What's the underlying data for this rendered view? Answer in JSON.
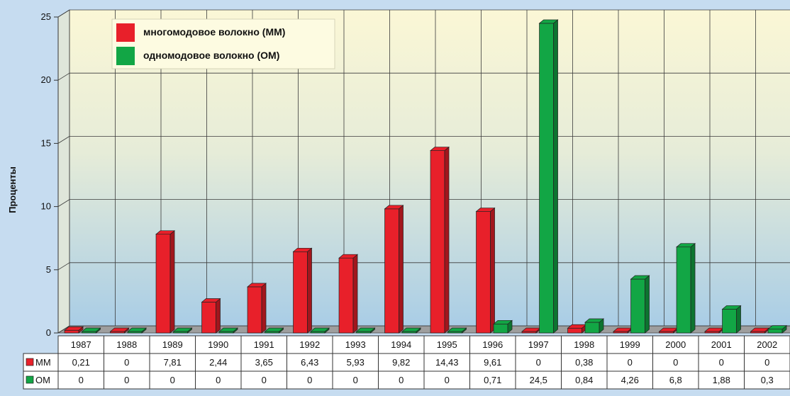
{
  "chart_data": {
    "type": "bar",
    "title": "",
    "xlabel": "",
    "ylabel": "Проценты",
    "ylim": [
      0,
      25
    ],
    "yticks": [
      "0",
      "5",
      "10",
      "15",
      "20",
      "25"
    ],
    "grid": true,
    "legend_position": "top-left",
    "categories": [
      "1987",
      "1988",
      "1989",
      "1990",
      "1991",
      "1992",
      "1993",
      "1994",
      "1995",
      "1996",
      "1997",
      "1998",
      "1999",
      "2000",
      "2001",
      "2002"
    ],
    "series": [
      {
        "name": "многомодовое волокно (ММ)",
        "short": "MM",
        "color": "#e8202a",
        "values": [
          0.21,
          0,
          7.81,
          2.44,
          3.65,
          6.43,
          5.93,
          9.82,
          14.43,
          9.61,
          0,
          0.38,
          0,
          0,
          0,
          0
        ],
        "labels": [
          "0,21",
          "0",
          "7,81",
          "2,44",
          "3,65",
          "6,43",
          "5,93",
          "9,82",
          "14,43",
          "9,61",
          "0",
          "0,38",
          "0",
          "0",
          "0",
          "0"
        ]
      },
      {
        "name": "одномодовое волокно (ОМ)",
        "short": "OM",
        "color": "#12a645",
        "values": [
          0,
          0,
          0,
          0,
          0,
          0,
          0,
          0,
          0,
          0.71,
          24.5,
          0.84,
          4.26,
          6.8,
          1.88,
          0.3
        ],
        "labels": [
          "0",
          "0",
          "0",
          "0",
          "0",
          "0",
          "0",
          "0",
          "0",
          "0,71",
          "24,5",
          "0,84",
          "4,26",
          "6,8",
          "1,88",
          "0,3"
        ]
      }
    ]
  }
}
